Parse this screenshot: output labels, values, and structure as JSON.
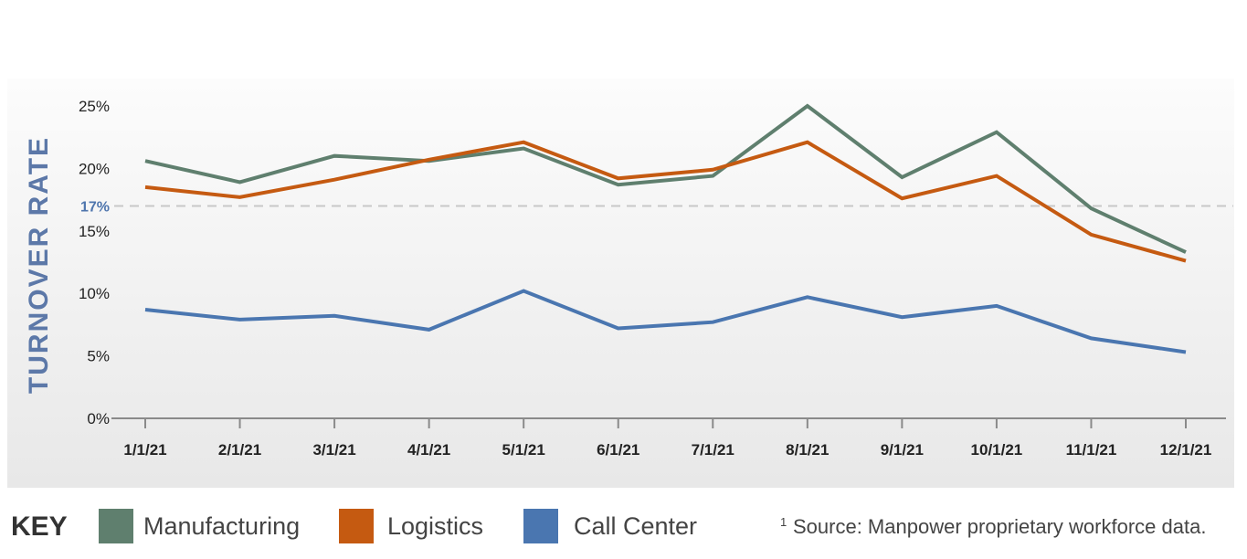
{
  "chart_data": {
    "type": "line",
    "title": "",
    "xlabel": "",
    "ylabel": "TURNOVER RATE",
    "categories": [
      "1/1/21",
      "2/1/21",
      "3/1/21",
      "4/1/21",
      "5/1/21",
      "6/1/21",
      "7/1/21",
      "8/1/21",
      "9/1/21",
      "10/1/21",
      "11/1/21",
      "12/1/21"
    ],
    "ylim": [
      0,
      25
    ],
    "yticks": [
      0,
      5,
      10,
      15,
      20,
      25
    ],
    "ytick_labels": [
      "0%",
      "5%",
      "10%",
      "15%",
      "20%",
      "25%"
    ],
    "reference_line": {
      "value": 17,
      "label": "17%",
      "color": "#c8c8c8"
    },
    "series": [
      {
        "name": "Manufacturing",
        "color": "#5f7f6e",
        "values": [
          20.6,
          18.9,
          21.0,
          20.6,
          21.6,
          18.7,
          19.4,
          25.0,
          19.3,
          22.9,
          16.8,
          13.3
        ]
      },
      {
        "name": "Logistics",
        "color": "#c55a11",
        "values": [
          18.5,
          17.7,
          19.1,
          20.7,
          22.1,
          19.2,
          19.9,
          22.1,
          17.6,
          19.4,
          14.7,
          12.6
        ]
      },
      {
        "name": "Call Center",
        "color": "#4a76b0",
        "values": [
          8.7,
          7.9,
          8.2,
          7.1,
          10.2,
          7.2,
          7.7,
          9.7,
          8.1,
          9.0,
          6.4,
          5.3
        ]
      }
    ]
  },
  "legend": {
    "key_label": "KEY",
    "items": [
      {
        "label": "Manufacturing",
        "color": "#5f7f6e"
      },
      {
        "label": "Logistics",
        "color": "#c55a11"
      },
      {
        "label": "Call Center",
        "color": "#4a76b0"
      }
    ]
  },
  "footnote": {
    "marker": "1",
    "text": "Source: Manpower proprietary workforce data."
  }
}
